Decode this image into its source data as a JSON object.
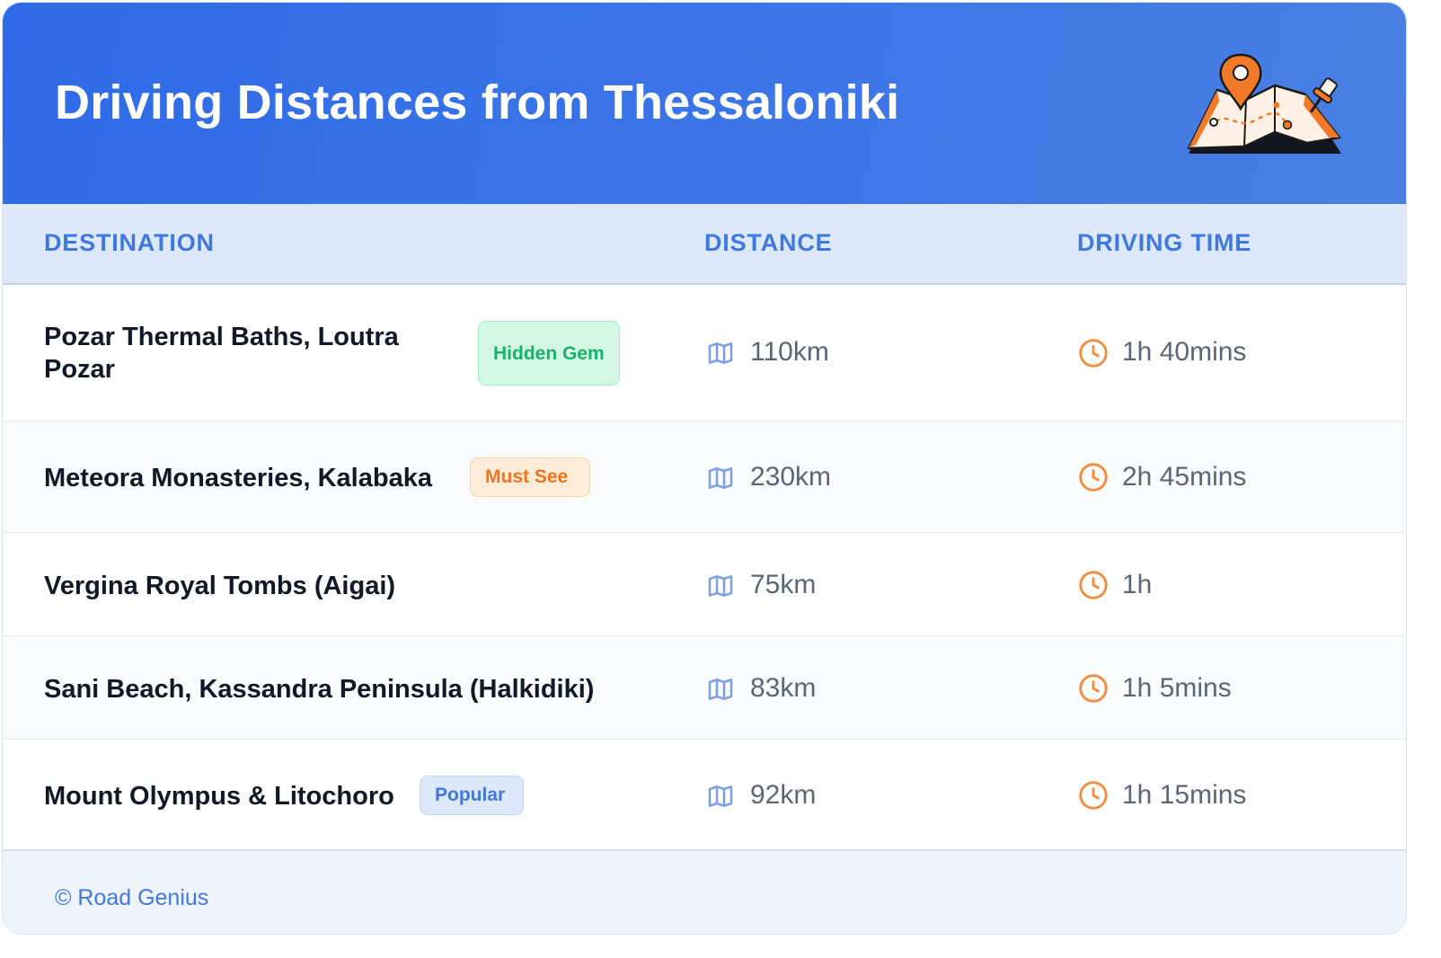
{
  "header": {
    "title": "Driving Distances from Thessaloniki",
    "illustration": "map-with-pin-icon"
  },
  "table": {
    "columns": [
      "DESTINATION",
      "DISTANCE",
      "DRIVING TIME"
    ],
    "rows": [
      {
        "destination": "Pozar Thermal Baths, Loutra Pozar",
        "badge": "Hidden Gem",
        "distance": "110km",
        "time": "1h 40mins"
      },
      {
        "destination": "Meteora Monasteries, Kalabaka",
        "badge": "Must See",
        "distance": "230km",
        "time": "2h 45mins"
      },
      {
        "destination": "Vergina Royal Tombs (Aigai)",
        "badge": null,
        "distance": "75km",
        "time": "1h"
      },
      {
        "destination": "Sani Beach, Kassandra Peninsula (Halkidiki)",
        "badge": null,
        "distance": "83km",
        "time": "1h 5mins"
      },
      {
        "destination": "Mount Olympus & Litochoro",
        "badge": "Popular",
        "distance": "92km",
        "time": "1h 15mins"
      }
    ],
    "distance_icon": "map-icon",
    "time_icon": "clock-icon"
  },
  "footer": {
    "text": "© Road Genius"
  },
  "colors": {
    "header_start": "#2f6be8",
    "accent_blue": "#3f78de",
    "badge_green": "#17b26a",
    "badge_orange": "#f2731c",
    "clock_orange": "#f28c3c",
    "map_icon_blue": "#7c9fe8"
  }
}
